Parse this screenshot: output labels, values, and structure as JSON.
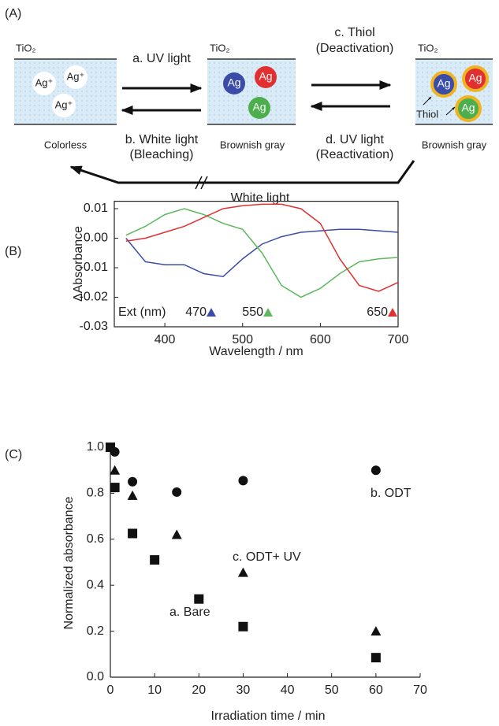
{
  "panel_labels": [
    "(A)",
    "(B)",
    "(C)"
  ],
  "diagram": {
    "boxes": [
      {
        "material": "TiO₂",
        "caption": "Colorless",
        "ions": [
          "Ag⁺",
          "Ag⁺",
          "Ag⁺"
        ]
      },
      {
        "material": "TiO₂",
        "caption": "Brownish gray",
        "particles": [
          "Ag",
          "Ag",
          "Ag"
        ]
      },
      {
        "material": "TiO₂",
        "caption": "Brownish gray",
        "particles": [
          "Ag",
          "Ag",
          "Ag"
        ],
        "ligand": "Thiol"
      }
    ],
    "arrows": [
      {
        "lines": [
          "a. UV light"
        ]
      },
      {
        "lines": [
          "b. White light",
          "(Bleaching)"
        ]
      },
      {
        "lines": [
          "c. Thiol",
          "(Deactivation)"
        ]
      },
      {
        "lines": [
          "d. UV light",
          "(Reactivation)"
        ]
      }
    ],
    "bottom_arrow": "White light"
  },
  "chart_data": [
    {
      "type": "line",
      "xlabel": "Wavelength / nm",
      "ylabel": "ΔAbsorbance",
      "x": [
        350,
        375,
        400,
        425,
        450,
        475,
        500,
        525,
        550,
        575,
        600,
        625,
        650,
        675,
        700
      ],
      "series": [
        {
          "name": "470",
          "color": "#3a4ca8",
          "values": [
            0.0,
            -0.008,
            -0.009,
            -0.009,
            -0.012,
            -0.013,
            -0.007,
            -0.002,
            0.0005,
            0.002,
            0.0025,
            0.003,
            0.003,
            0.0025,
            0.002
          ]
        },
        {
          "name": "550",
          "color": "#5cb85c",
          "values": [
            0.001,
            0.004,
            0.008,
            0.01,
            0.008,
            0.005,
            0.003,
            -0.005,
            -0.016,
            -0.02,
            -0.017,
            -0.012,
            -0.008,
            -0.007,
            -0.0065
          ]
        },
        {
          "name": "650",
          "color": "#e03030",
          "values": [
            -0.001,
            0.0,
            0.002,
            0.004,
            0.007,
            0.01,
            0.011,
            0.0115,
            0.0115,
            0.01,
            0.005,
            -0.007,
            -0.016,
            -0.018,
            -0.015
          ]
        }
      ],
      "legend_title": "Ext (nm)",
      "xlim": [
        335,
        700
      ],
      "xticks": [
        400,
        500,
        600,
        700
      ],
      "ylim": [
        -0.03,
        0.0125
      ],
      "yticks": [
        0.01,
        {
          "value": 0,
          "label": "0.00"
        },
        -0.01,
        -0.02,
        -0.03
      ]
    },
    {
      "type": "scatter",
      "xlabel": "Irradiation time / min",
      "ylabel": "Normalized absorbance",
      "series": [
        {
          "name": "b. ODT",
          "marker": "circle",
          "color": "#111111",
          "x": [
            0,
            1,
            5,
            15,
            30,
            60
          ],
          "values": [
            1.0,
            0.98,
            0.85,
            0.805,
            0.855,
            0.9
          ]
        },
        {
          "name": "c. ODT+ UV",
          "marker": "triangle",
          "color": "#111111",
          "x": [
            0,
            1,
            5,
            15,
            30,
            60
          ],
          "values": [
            1.0,
            0.9,
            0.79,
            0.62,
            0.455,
            0.2
          ]
        },
        {
          "name": "a. Bare",
          "marker": "square",
          "color": "#111111",
          "x": [
            0,
            1,
            5,
            10,
            20,
            30,
            60
          ],
          "values": [
            1.0,
            0.825,
            0.625,
            0.51,
            0.34,
            0.22,
            0.085
          ]
        }
      ],
      "xlim": [
        0,
        70
      ],
      "xticks": [
        0,
        10,
        20,
        30,
        40,
        50,
        60,
        70
      ],
      "ylim": [
        0,
        1.0
      ],
      "yticks": [
        {
          "value": 0,
          "label": "0.0"
        },
        0.2,
        0.4,
        0.6,
        0.8,
        {
          "value": 1,
          "label": "1.0"
        }
      ]
    }
  ]
}
